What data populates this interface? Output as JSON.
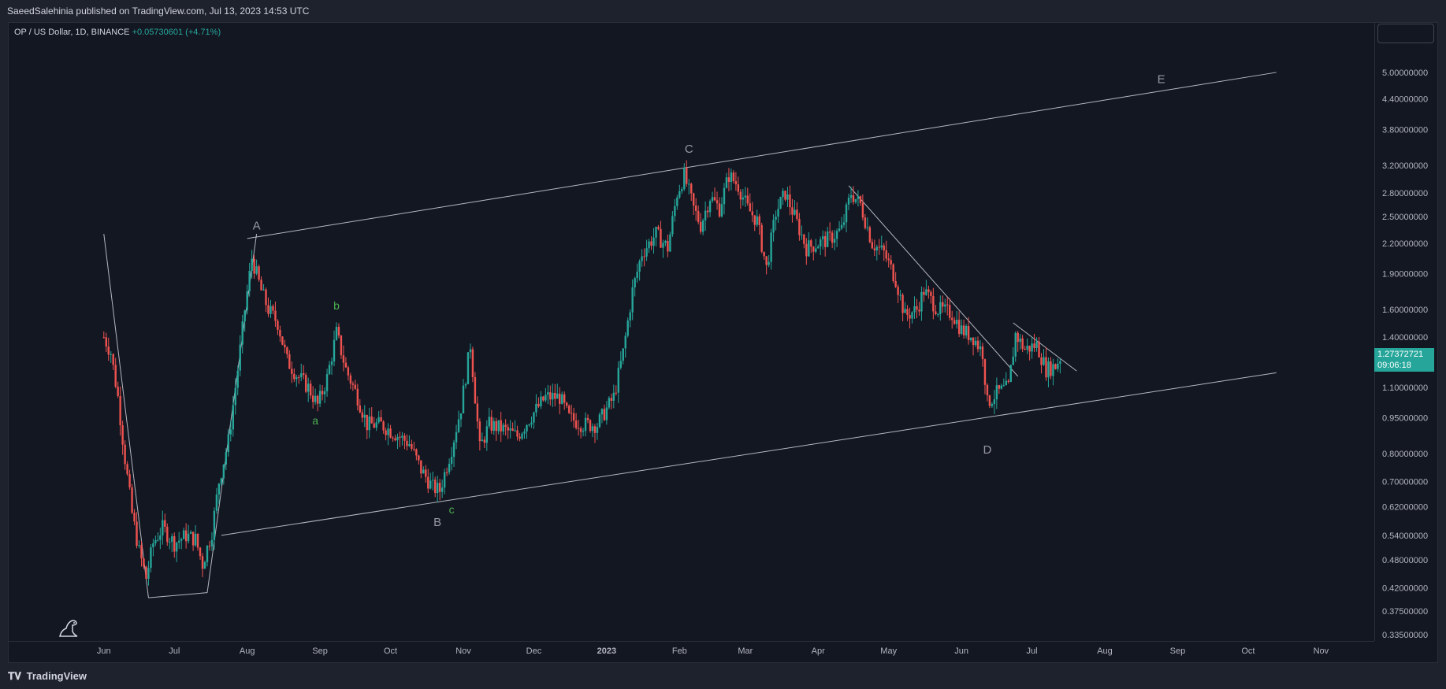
{
  "header": {
    "published": "SaeedSalehinia published on TradingView.com, Jul 13, 2023 14:53 UTC"
  },
  "legend": {
    "symbol": "OP / US Dollar, 1D, BINANCE",
    "change": "+0.05730601 (+4.71%)"
  },
  "last_price": {
    "price": "1.27372721",
    "countdown": "09:06:18",
    "color": "#26a69a"
  },
  "footer": {
    "brand": "TradingView",
    "icon": "tradingview-logo-icon"
  },
  "colors": {
    "up": "#26a69a",
    "down": "#ef5350",
    "background": "#131722",
    "lines": "#d1d4dc"
  },
  "chart_data": {
    "type": "candlestick",
    "title": "",
    "scale": "log",
    "y_ticks": [
      "5.00000000",
      "4.40000000",
      "3.80000000",
      "3.20000000",
      "2.80000000",
      "2.50000000",
      "2.20000000",
      "1.90000000",
      "1.60000000",
      "1.40000000",
      "1.10000000",
      "0.95000000",
      "0.80000000",
      "0.70000000",
      "0.62000000",
      "0.54000000",
      "0.48000000",
      "0.42000000",
      "0.37500000",
      "0.33500000"
    ],
    "x_ticks": [
      "Jun",
      "Jul",
      "Aug",
      "Sep",
      "Oct",
      "Nov",
      "Dec",
      "2023",
      "Feb",
      "Mar",
      "Apr",
      "May",
      "Jun",
      "Jul",
      "Aug",
      "Sep",
      "Oct",
      "Nov"
    ],
    "ylim": [
      0.335,
      5.6
    ],
    "close_path": [
      [
        "2022-06-01",
        1.4
      ],
      [
        "2022-06-04",
        1.3
      ],
      [
        "2022-06-07",
        1.05
      ],
      [
        "2022-06-10",
        0.78
      ],
      [
        "2022-06-13",
        0.6
      ],
      [
        "2022-06-16",
        0.5
      ],
      [
        "2022-06-19",
        0.44
      ],
      [
        "2022-06-22",
        0.52
      ],
      [
        "2022-06-26",
        0.56
      ],
      [
        "2022-07-01",
        0.52
      ],
      [
        "2022-07-06",
        0.54
      ],
      [
        "2022-07-10",
        0.53
      ],
      [
        "2022-07-13",
        0.47
      ],
      [
        "2022-07-17",
        0.55
      ],
      [
        "2022-07-20",
        0.7
      ],
      [
        "2022-07-24",
        0.85
      ],
      [
        "2022-07-28",
        1.2
      ],
      [
        "2022-07-31",
        1.6
      ],
      [
        "2022-08-03",
        2.05
      ],
      [
        "2022-08-07",
        1.75
      ],
      [
        "2022-08-10",
        1.6
      ],
      [
        "2022-08-14",
        1.5
      ],
      [
        "2022-08-18",
        1.25
      ],
      [
        "2022-08-22",
        1.17
      ],
      [
        "2022-08-27",
        1.1
      ],
      [
        "2022-08-31",
        1.01
      ],
      [
        "2022-09-04",
        1.15
      ],
      [
        "2022-09-08",
        1.43
      ],
      [
        "2022-09-12",
        1.2
      ],
      [
        "2022-09-17",
        1.05
      ],
      [
        "2022-09-21",
        0.92
      ],
      [
        "2022-09-27",
        0.92
      ],
      [
        "2022-10-03",
        0.88
      ],
      [
        "2022-10-09",
        0.84
      ],
      [
        "2022-10-14",
        0.74
      ],
      [
        "2022-10-19",
        0.68
      ],
      [
        "2022-10-22",
        0.67
      ],
      [
        "2022-10-27",
        0.82
      ],
      [
        "2022-10-31",
        1.0
      ],
      [
        "2022-11-04",
        1.35
      ],
      [
        "2022-11-08",
        0.82
      ],
      [
        "2022-11-12",
        0.92
      ],
      [
        "2022-11-18",
        0.9
      ],
      [
        "2022-11-24",
        0.87
      ],
      [
        "2022-11-30",
        0.96
      ],
      [
        "2022-12-06",
        1.05
      ],
      [
        "2022-12-12",
        1.05
      ],
      [
        "2022-12-16",
        0.95
      ],
      [
        "2022-12-22",
        0.92
      ],
      [
        "2022-12-28",
        0.92
      ],
      [
        "2023-01-04",
        1.05
      ],
      [
        "2023-01-08",
        1.3
      ],
      [
        "2023-01-12",
        1.75
      ],
      [
        "2023-01-16",
        2.1
      ],
      [
        "2023-01-22",
        2.3
      ],
      [
        "2023-01-27",
        2.15
      ],
      [
        "2023-01-31",
        2.8
      ],
      [
        "2023-02-03",
        3.05
      ],
      [
        "2023-02-07",
        2.6
      ],
      [
        "2023-02-10",
        2.4
      ],
      [
        "2023-02-14",
        2.75
      ],
      [
        "2023-02-18",
        2.6
      ],
      [
        "2023-02-22",
        3.05
      ],
      [
        "2023-02-26",
        2.9
      ],
      [
        "2023-03-02",
        2.6
      ],
      [
        "2023-03-06",
        2.45
      ],
      [
        "2023-03-10",
        1.95
      ],
      [
        "2023-03-14",
        2.55
      ],
      [
        "2023-03-18",
        2.8
      ],
      [
        "2023-03-22",
        2.5
      ],
      [
        "2023-03-27",
        2.15
      ],
      [
        "2023-04-01",
        2.2
      ],
      [
        "2023-04-06",
        2.25
      ],
      [
        "2023-04-11",
        2.35
      ],
      [
        "2023-04-15",
        2.8
      ],
      [
        "2023-04-19",
        2.65
      ],
      [
        "2023-04-24",
        2.2
      ],
      [
        "2023-04-29",
        2.1
      ],
      [
        "2023-05-04",
        1.85
      ],
      [
        "2023-05-08",
        1.55
      ],
      [
        "2023-05-13",
        1.6
      ],
      [
        "2023-05-16",
        1.75
      ],
      [
        "2023-05-22",
        1.6
      ],
      [
        "2023-05-28",
        1.57
      ],
      [
        "2023-06-01",
        1.45
      ],
      [
        "2023-06-06",
        1.4
      ],
      [
        "2023-06-10",
        1.3
      ],
      [
        "2023-06-12",
        1.02
      ],
      [
        "2023-06-16",
        1.07
      ],
      [
        "2023-06-21",
        1.1
      ],
      [
        "2023-06-24",
        1.42
      ],
      [
        "2023-06-28",
        1.32
      ],
      [
        "2023-07-03",
        1.35
      ],
      [
        "2023-07-07",
        1.2
      ],
      [
        "2023-07-11",
        1.22
      ],
      [
        "2023-07-13",
        1.27
      ]
    ],
    "drawings": {
      "channel_upper": [
        [
          "2022-08-01",
          2.25
        ],
        [
          "2023-10-13",
          5.0
        ]
      ],
      "channel_lower": [
        [
          "2022-07-21",
          0.54
        ],
        [
          "2023-10-13",
          1.18
        ]
      ],
      "downtrend_1": [
        [
          "2023-04-14",
          2.9
        ],
        [
          "2023-06-25",
          1.16
        ]
      ],
      "downtrend_2": [
        [
          "2023-06-23",
          1.5
        ],
        [
          "2023-07-20",
          1.19
        ]
      ],
      "zigzag": [
        [
          "2022-06-01",
          2.3
        ],
        [
          "2022-06-20",
          0.4
        ],
        [
          "2022-07-15",
          0.41
        ],
        [
          "2022-08-05",
          2.3
        ]
      ]
    },
    "wave_labels": [
      {
        "text": "A",
        "date": "2022-08-05",
        "price": 2.35,
        "color": "#9598a1"
      },
      {
        "text": "B",
        "date": "2022-10-21",
        "price": 0.565,
        "color": "#9598a1"
      },
      {
        "text": "C",
        "date": "2023-02-05",
        "price": 3.4,
        "color": "#9598a1"
      },
      {
        "text": "D",
        "date": "2023-06-12",
        "price": 0.8,
        "color": "#9598a1"
      },
      {
        "text": "E",
        "date": "2023-08-25",
        "price": 4.75,
        "color": "#9598a1"
      },
      {
        "text": "a",
        "date": "2022-08-30",
        "price": 0.92,
        "color": "#4caf50"
      },
      {
        "text": "b",
        "date": "2022-09-08",
        "price": 1.6,
        "color": "#4caf50"
      },
      {
        "text": "c",
        "date": "2022-10-27",
        "price": 0.6,
        "color": "#4caf50"
      }
    ]
  }
}
